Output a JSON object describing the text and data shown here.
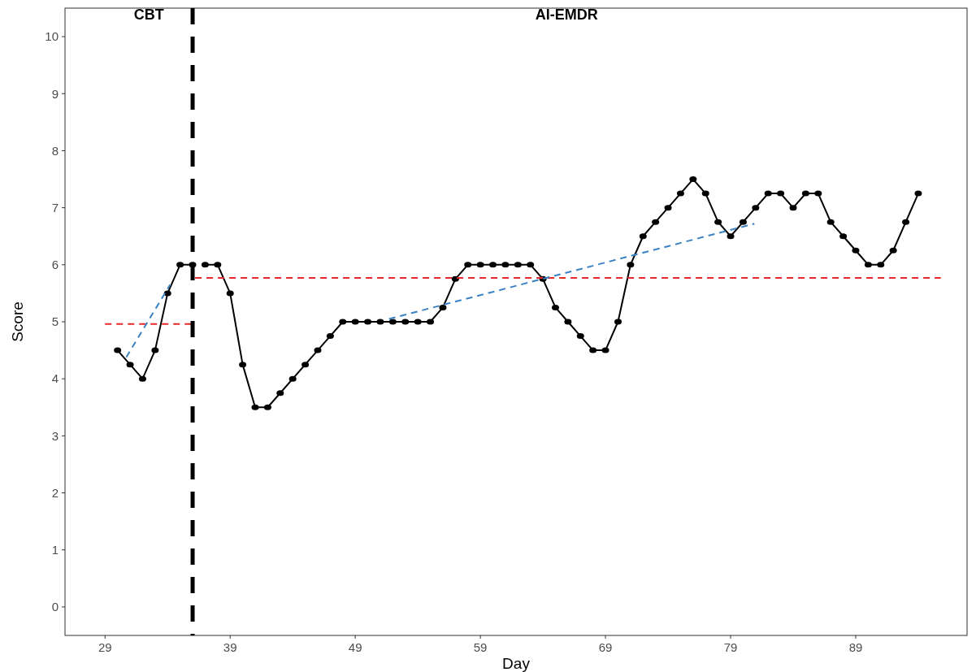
{
  "chart_data": {
    "type": "line",
    "xlabel": "Day",
    "ylabel": "Score",
    "xlim": [
      25.8,
      97.9
    ],
    "xticks": [
      29,
      39,
      49,
      59,
      69,
      79,
      89
    ],
    "ylim": [
      -0.5,
      10.5
    ],
    "yticks": [
      0,
      1,
      2,
      3,
      4,
      5,
      6,
      7,
      8,
      9,
      10
    ],
    "grid": false,
    "series": [
      {
        "color": "#000000",
        "marker": "circle",
        "line_style": "solid",
        "x": [
          30,
          31,
          32,
          33,
          34,
          35,
          36
        ],
        "values": [
          4.5,
          4.25,
          4.0,
          4.5,
          5.5,
          6.0,
          6.0
        ]
      },
      {
        "color": "#000000",
        "marker": "circle",
        "line_style": "solid",
        "x": [
          37,
          38,
          39,
          40,
          41,
          42,
          43,
          44,
          45,
          46,
          47,
          48,
          49,
          50,
          51,
          52,
          53,
          54,
          55,
          56,
          57,
          58,
          59,
          60,
          61,
          62,
          63,
          64,
          65,
          66,
          67,
          68,
          69,
          70,
          71,
          72,
          73,
          74,
          75,
          76,
          77,
          78,
          79,
          80,
          81,
          82,
          83,
          84,
          85,
          86,
          87,
          88,
          89,
          90,
          91,
          92,
          93,
          94
        ],
        "values": [
          6.0,
          6.0,
          5.5,
          4.25,
          3.5,
          3.5,
          3.75,
          4.0,
          4.25,
          4.5,
          4.75,
          5.0,
          5.0,
          5.0,
          5.0,
          5.0,
          5.0,
          5.0,
          5.0,
          5.25,
          5.75,
          6.0,
          6.0,
          6.0,
          6.0,
          6.0,
          6.0,
          5.75,
          5.25,
          5.0,
          4.75,
          4.5,
          4.5,
          5.0,
          6.0,
          6.5,
          6.75,
          7.0,
          7.25,
          7.5,
          7.25,
          6.75,
          6.5,
          6.75,
          7.0,
          7.25,
          7.25,
          7.0,
          7.25,
          7.25,
          6.75,
          6.5,
          6.25,
          6.0,
          6.0,
          6.25,
          6.75,
          7.25
        ]
      },
      {
        "color": "#e8262b",
        "marker": "none",
        "line_style": "dashed",
        "x": [
          29,
          35.9
        ],
        "values": [
          4.96,
          4.96
        ]
      },
      {
        "color": "#e8262b",
        "marker": "none",
        "line_style": "dashed",
        "x": [
          36.2,
          95.8
        ],
        "values": [
          5.77,
          5.77
        ]
      },
      {
        "color": "#3a82c4",
        "marker": "none",
        "line_style": "dashed",
        "x": [
          30.7,
          34.2
        ],
        "values": [
          4.38,
          5.65
        ]
      },
      {
        "color": "#3a82c4",
        "marker": "none",
        "line_style": "dashed",
        "x": [
          51.7,
          80.9
        ],
        "values": [
          5.05,
          6.72
        ]
      }
    ],
    "ref_lines": [
      {
        "axis": "x",
        "value": 36,
        "color": "#000000",
        "line_style": "dashed"
      }
    ],
    "annotations": [
      "CBT",
      "AI-EMDR"
    ]
  }
}
